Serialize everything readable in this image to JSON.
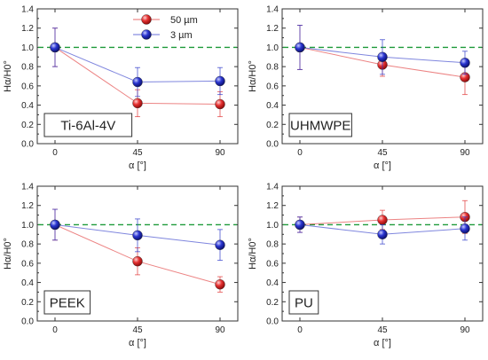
{
  "legend": {
    "placement": "top-right of first panel",
    "series": [
      {
        "name": "50 µm",
        "color": "#e03030"
      },
      {
        "name": "3 µm",
        "color": "#2a35c8"
      }
    ]
  },
  "chart_data": [
    {
      "type": "line",
      "panel_label": "Ti-6Al-4V",
      "x": [
        0,
        45,
        90
      ],
      "xticks": [
        "0",
        "45",
        "90"
      ],
      "xlabel": "α [°]",
      "ylabel": "Hα/H0°",
      "ylim": [
        0.0,
        1.4
      ],
      "yticks": [
        "0.0",
        "0.2",
        "0.4",
        "0.6",
        "0.8",
        "1.0",
        "1.2",
        "1.4"
      ],
      "reference_line": 1.0,
      "grid": false,
      "series": [
        {
          "name": "50 µm",
          "color": "#e03030",
          "values": [
            1.0,
            0.42,
            0.41
          ],
          "errors": [
            0.2,
            0.14,
            0.13
          ]
        },
        {
          "name": "3 µm",
          "color": "#2a35c8",
          "values": [
            1.0,
            0.64,
            0.65
          ],
          "errors": [
            0.2,
            0.15,
            0.14
          ]
        }
      ]
    },
    {
      "type": "line",
      "panel_label": "UHMWPE",
      "x": [
        0,
        45,
        90
      ],
      "xticks": [
        "0",
        "45",
        "90"
      ],
      "xlabel": "α [°]",
      "ylabel": "Hα/H0°",
      "ylim": [
        0.0,
        1.4
      ],
      "yticks": [
        "0.0",
        "0.2",
        "0.4",
        "0.6",
        "0.8",
        "1.0",
        "1.2",
        "1.4"
      ],
      "reference_line": 1.0,
      "grid": false,
      "series": [
        {
          "name": "50 µm",
          "color": "#e03030",
          "values": [
            1.0,
            0.82,
            0.69
          ],
          "errors": [
            0.23,
            0.12,
            0.18
          ]
        },
        {
          "name": "3 µm",
          "color": "#2a35c8",
          "values": [
            1.0,
            0.9,
            0.84
          ],
          "errors": [
            0.23,
            0.18,
            0.12
          ]
        }
      ]
    },
    {
      "type": "line",
      "panel_label": "PEEK",
      "x": [
        0,
        45,
        90
      ],
      "xticks": [
        "0",
        "45",
        "90"
      ],
      "xlabel": "α [°]",
      "ylabel": "Hα/H0°",
      "ylim": [
        0.0,
        1.4
      ],
      "yticks": [
        "0.0",
        "0.2",
        "0.4",
        "0.6",
        "0.8",
        "1.0",
        "1.2",
        "1.4"
      ],
      "reference_line": 1.0,
      "grid": false,
      "series": [
        {
          "name": "50 µm",
          "color": "#e03030",
          "values": [
            1.0,
            0.62,
            0.38
          ],
          "errors": [
            0.16,
            0.14,
            0.08
          ]
        },
        {
          "name": "3 µm",
          "color": "#2a35c8",
          "values": [
            1.0,
            0.89,
            0.79
          ],
          "errors": [
            0.16,
            0.17,
            0.16
          ]
        }
      ]
    },
    {
      "type": "line",
      "panel_label": "PU",
      "x": [
        0,
        45,
        90
      ],
      "xticks": [
        "0",
        "45",
        "90"
      ],
      "xlabel": "α [°]",
      "ylabel": "Hα/H0°",
      "ylim": [
        0.0,
        1.4
      ],
      "yticks": [
        "0.0",
        "0.2",
        "0.4",
        "0.6",
        "0.8",
        "1.0",
        "1.2",
        "1.4"
      ],
      "reference_line": 1.0,
      "grid": false,
      "series": [
        {
          "name": "50 µm",
          "color": "#e03030",
          "values": [
            1.0,
            1.05,
            1.08
          ],
          "errors": [
            0.08,
            0.1,
            0.17
          ]
        },
        {
          "name": "3 µm",
          "color": "#2a35c8",
          "values": [
            1.0,
            0.9,
            0.96
          ],
          "errors": [
            0.08,
            0.1,
            0.12
          ]
        }
      ]
    }
  ]
}
